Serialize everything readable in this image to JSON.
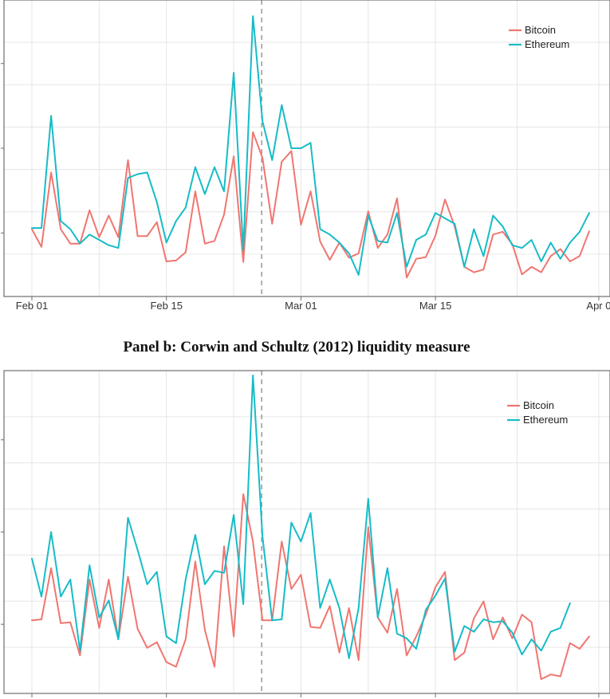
{
  "panel_b_title": "Panel b: Corwin and Schultz (2012) liquidity measure",
  "colors": {
    "Bitcoin": "#F07670",
    "Ethereum": "#16BCC7",
    "grid": "#E6E6E6",
    "border": "#6E6E6E",
    "vline": "#9E9E9E"
  },
  "chart_data": [
    {
      "type": "line",
      "title": "",
      "x": [
        "2021-02-01",
        "2021-02-02",
        "2021-02-03",
        "2021-02-04",
        "2021-02-05",
        "2021-02-06",
        "2021-02-07",
        "2021-02-08",
        "2021-02-09",
        "2021-02-10",
        "2021-02-11",
        "2021-02-12",
        "2021-02-13",
        "2021-02-14",
        "2021-02-15",
        "2021-02-16",
        "2021-02-17",
        "2021-02-18",
        "2021-02-19",
        "2021-02-20",
        "2021-02-21",
        "2021-02-22",
        "2021-02-23",
        "2021-02-24",
        "2021-02-25",
        "2021-02-26",
        "2021-02-27",
        "2021-02-28",
        "2021-03-01",
        "2021-03-02",
        "2021-03-03",
        "2021-03-04",
        "2021-03-05",
        "2021-03-06",
        "2021-03-07",
        "2021-03-08",
        "2021-03-09",
        "2021-03-10",
        "2021-03-11",
        "2021-03-12",
        "2021-03-13",
        "2021-03-14",
        "2021-03-15",
        "2021-03-16",
        "2021-03-17",
        "2021-03-18",
        "2021-03-19",
        "2021-03-20",
        "2021-03-21",
        "2021-03-22",
        "2021-03-23",
        "2021-03-24",
        "2021-03-25",
        "2021-03-26",
        "2021-03-27",
        "2021-03-28",
        "2021-03-29",
        "2021-03-30",
        "2021-03-31"
      ],
      "x_ticks": [
        "Feb 01",
        "Feb 15",
        "Mar 01",
        "Mar 15",
        "Apr 0"
      ],
      "series": [
        {
          "name": "Bitcoin",
          "values": [
            0.7,
            0.37,
            1.75,
            0.7,
            0.43,
            0.43,
            1.05,
            0.55,
            0.95,
            0.55,
            1.98,
            0.57,
            0.57,
            0.83,
            0.1,
            0.12,
            0.27,
            1.4,
            0.43,
            0.48,
            0.97,
            2.05,
            0.09,
            2.5,
            2.02,
            0.8,
            1.95,
            2.15,
            0.78,
            1.4,
            0.47,
            0.13,
            0.45,
            0.17,
            0.25,
            1.03,
            0.35,
            0.6,
            1.27,
            -0.2,
            0.15,
            0.18,
            0.58,
            1.25,
            0.75,
            0.0,
            -0.1,
            -0.05,
            0.6,
            0.65,
            0.42,
            -0.14,
            0.0,
            -0.1,
            0.2,
            0.33,
            0.1,
            0.2,
            0.66
          ]
        },
        {
          "name": "Ethereum",
          "values": [
            0.72,
            0.72,
            2.8,
            0.85,
            0.7,
            0.43,
            0.6,
            0.5,
            0.4,
            0.35,
            1.65,
            1.72,
            1.75,
            1.2,
            0.45,
            0.85,
            1.1,
            1.85,
            1.35,
            1.85,
            1.4,
            3.6,
            0.3,
            4.65,
            2.7,
            1.98,
            3.0,
            2.2,
            2.2,
            2.3,
            0.7,
            0.6,
            0.45,
            0.25,
            -0.15,
            0.95,
            0.48,
            0.45,
            1.0,
            0.0,
            0.5,
            0.6,
            1.0,
            0.9,
            0.8,
            0.0,
            0.7,
            0.2,
            0.95,
            0.75,
            0.4,
            0.35,
            0.5,
            0.1,
            0.45,
            0.15,
            0.45,
            0.65,
            1.0
          ]
        }
      ],
      "event_date": "2021-02-25",
      "legend": "top-right",
      "grid": true,
      "ylim": [
        -0.55,
        4.95
      ]
    },
    {
      "type": "line",
      "title": "Panel b: Corwin and Schultz (2012) liquidity measure",
      "x": [
        "2021-02-01",
        "2021-02-02",
        "2021-02-03",
        "2021-02-04",
        "2021-02-05",
        "2021-02-06",
        "2021-02-07",
        "2021-02-08",
        "2021-02-09",
        "2021-02-10",
        "2021-02-11",
        "2021-02-12",
        "2021-02-13",
        "2021-02-14",
        "2021-02-15",
        "2021-02-16",
        "2021-02-17",
        "2021-02-18",
        "2021-02-19",
        "2021-02-20",
        "2021-02-21",
        "2021-02-22",
        "2021-02-23",
        "2021-02-24",
        "2021-02-25",
        "2021-02-26",
        "2021-02-27",
        "2021-02-28",
        "2021-03-01",
        "2021-03-02",
        "2021-03-03",
        "2021-03-04",
        "2021-03-05",
        "2021-03-06",
        "2021-03-07",
        "2021-03-08",
        "2021-03-09",
        "2021-03-10",
        "2021-03-11",
        "2021-03-12",
        "2021-03-13",
        "2021-03-14",
        "2021-03-15",
        "2021-03-16",
        "2021-03-17",
        "2021-03-18",
        "2021-03-19",
        "2021-03-20",
        "2021-03-21",
        "2021-03-22",
        "2021-03-23",
        "2021-03-24",
        "2021-03-25",
        "2021-03-26",
        "2021-03-27",
        "2021-03-28",
        "2021-03-29",
        "2021-03-30",
        "2021-03-31"
      ],
      "x_ticks": [
        "",
        "",
        "",
        "",
        ""
      ],
      "series": [
        {
          "name": "Bitcoin",
          "values": [
            0.07,
            0.08,
            0.62,
            0.04,
            0.05,
            -0.3,
            0.5,
            -0.01,
            0.5,
            -0.13,
            0.53,
            -0.02,
            -0.22,
            -0.16,
            -0.37,
            -0.42,
            -0.13,
            0.69,
            -0.03,
            -0.42,
            0.85,
            -0.1,
            1.4,
            0.9,
            0.07,
            0.07,
            0.9,
            0.4,
            0.55,
            0.0,
            -0.01,
            0.22,
            -0.27,
            0.2,
            -0.35,
            1.05,
            0.1,
            -0.06,
            0.4,
            -0.3,
            -0.1,
            0.13,
            0.42,
            0.58,
            -0.35,
            -0.27,
            0.09,
            0.27,
            -0.13,
            0.1,
            -0.12,
            0.13,
            0.05,
            -0.55,
            -0.5,
            -0.52,
            -0.17,
            -0.23,
            -0.1
          ]
        },
        {
          "name": "Ethereum",
          "values": [
            0.72,
            0.32,
            1.0,
            0.32,
            0.5,
            -0.25,
            0.65,
            0.1,
            0.28,
            -0.13,
            1.15,
            0.81,
            0.45,
            0.58,
            -0.1,
            -0.17,
            0.5,
            0.97,
            0.45,
            0.59,
            0.57,
            1.18,
            0.24,
            2.65,
            0.95,
            0.07,
            0.08,
            1.1,
            0.9,
            1.2,
            0.2,
            0.5,
            0.2,
            -0.33,
            0.2,
            1.35,
            0.1,
            0.62,
            -0.07,
            -0.12,
            -0.23,
            0.18,
            0.33,
            0.51,
            -0.26,
            0.01,
            -0.05,
            0.08,
            0.05,
            0.06,
            -0.06,
            -0.29,
            -0.13,
            -0.25,
            -0.05,
            -0.01,
            0.25,
            null,
            null
          ]
        }
      ],
      "event_date": "2021-02-25",
      "legend": "top-right",
      "grid": true,
      "ylim": [
        -0.7,
        2.7
      ]
    }
  ]
}
